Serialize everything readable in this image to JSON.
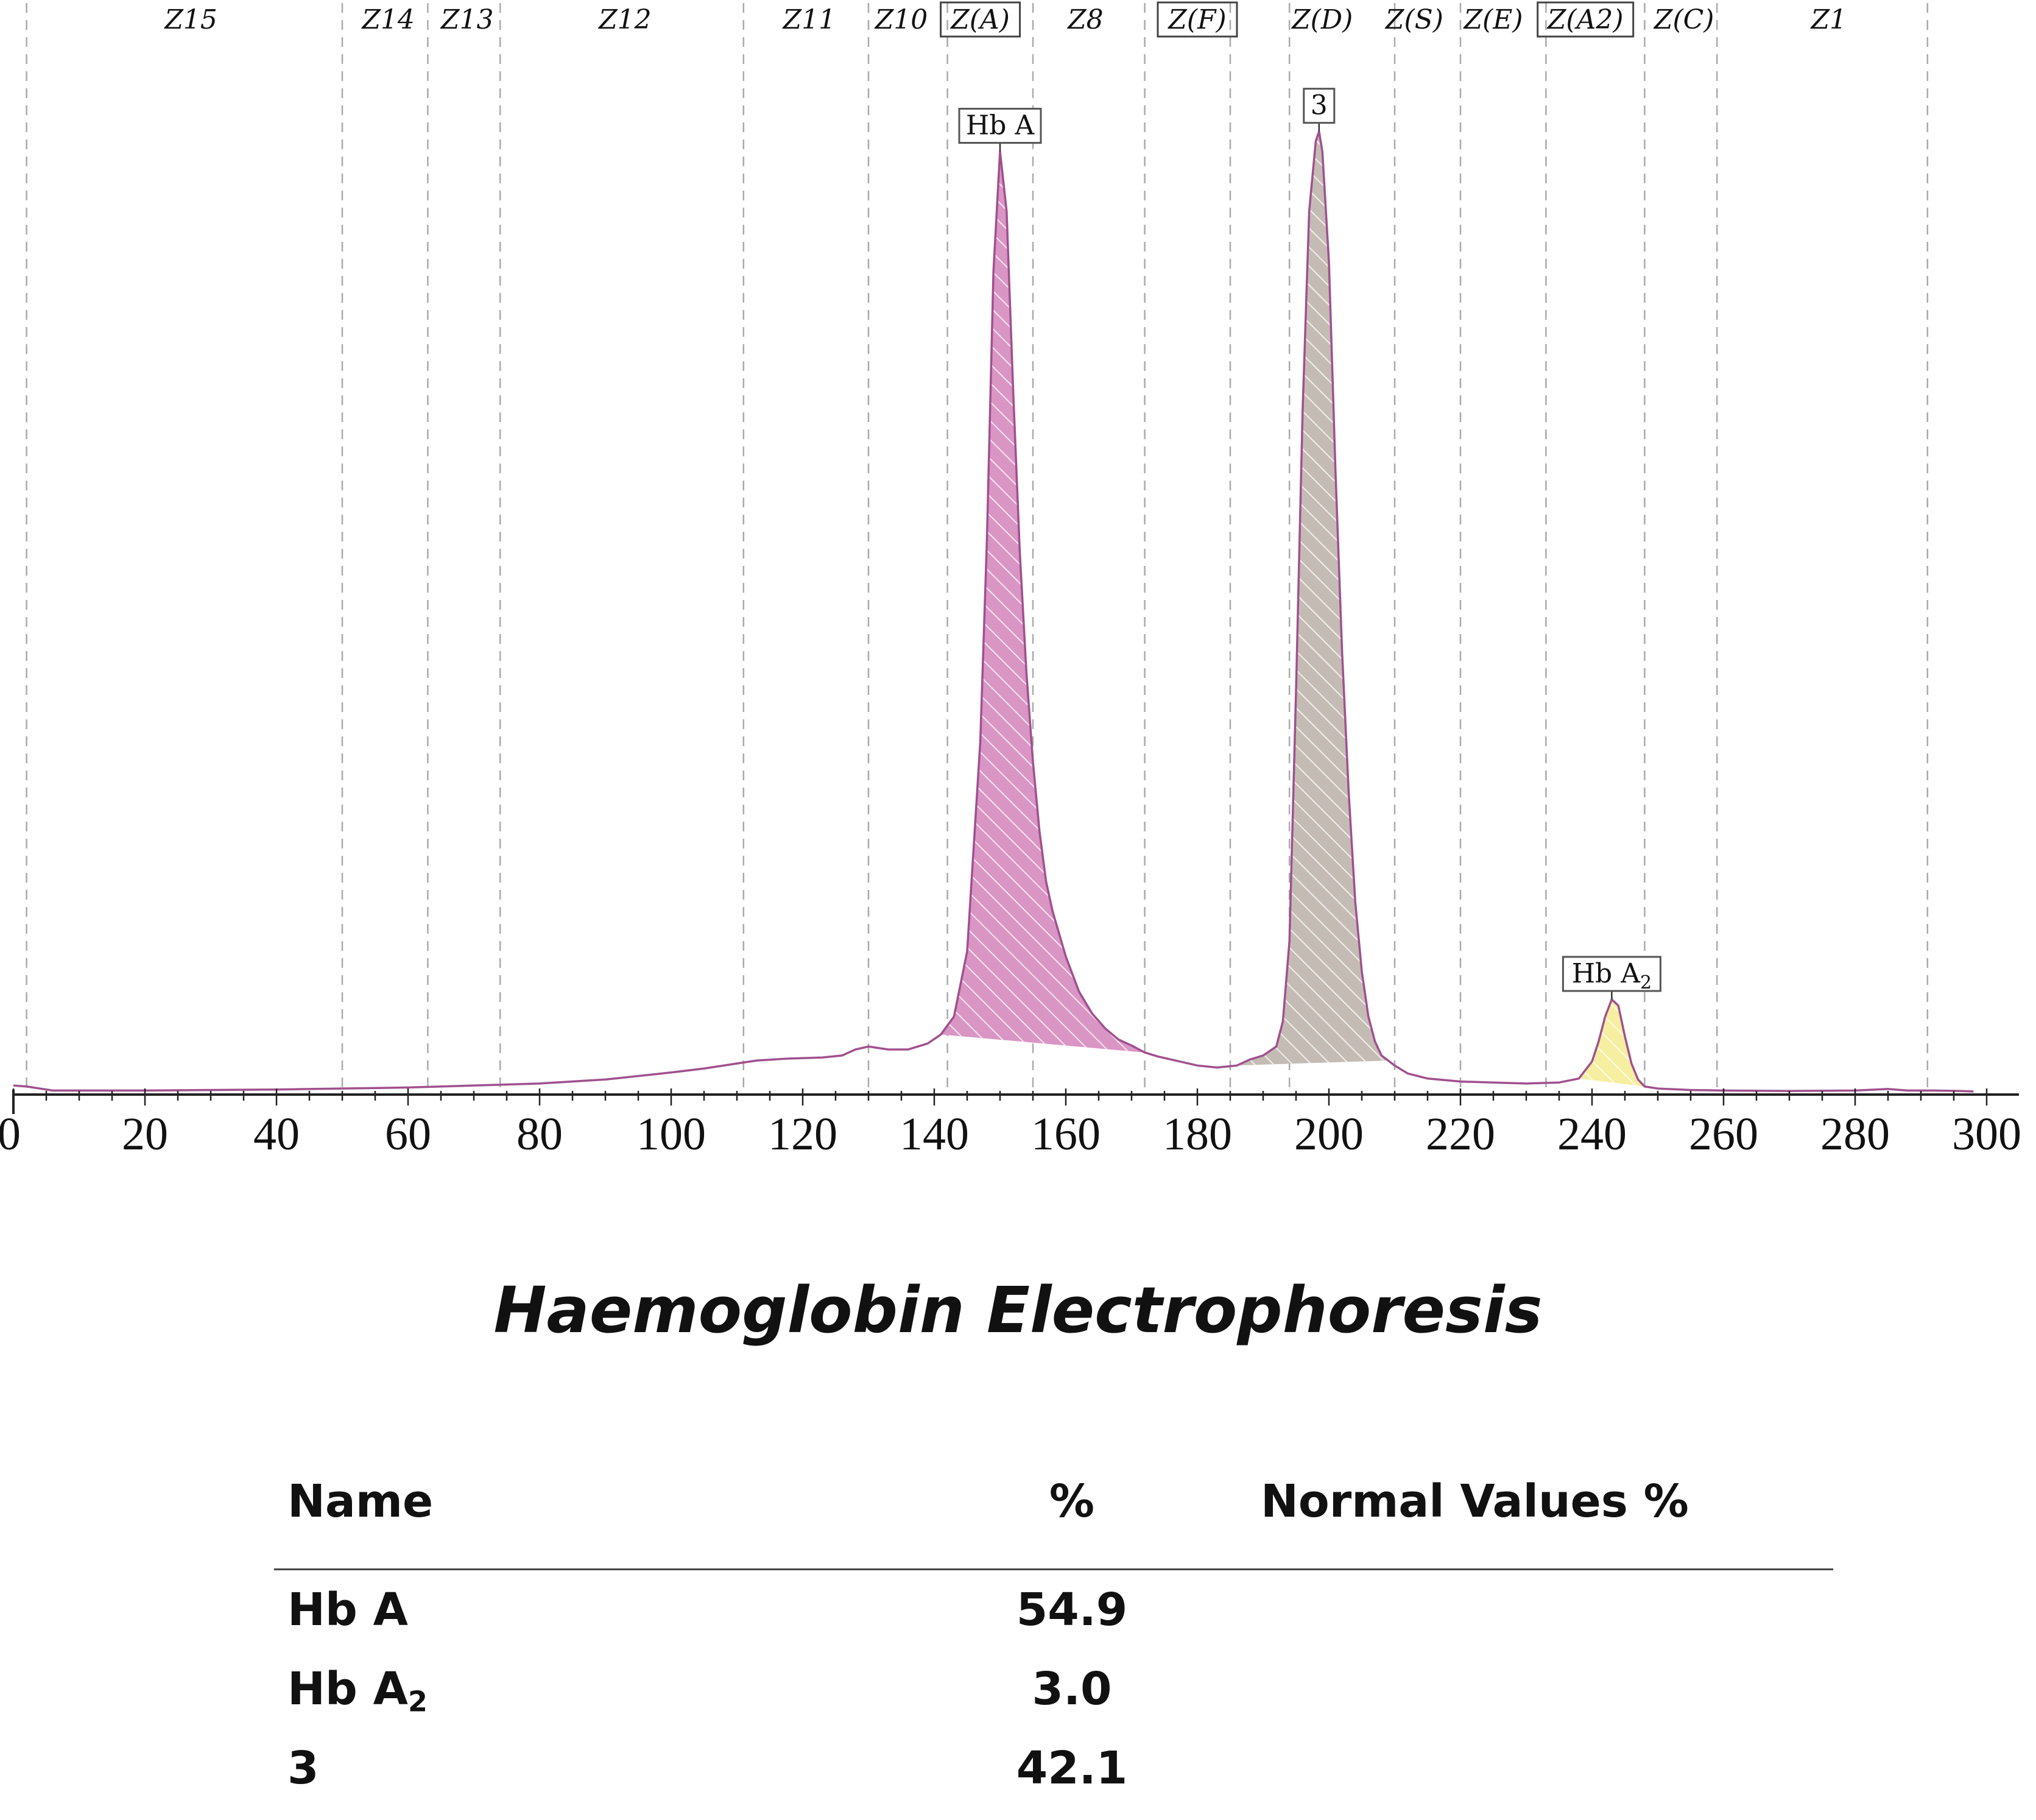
{
  "chart_data": {
    "type": "line",
    "title": "Haemoglobin Electrophoresis",
    "xlim": [
      0,
      300
    ],
    "ylim": [
      0,
      100
    ],
    "x_ticks": [
      0,
      20,
      40,
      60,
      80,
      100,
      120,
      140,
      160,
      180,
      200,
      220,
      240,
      260,
      280,
      300
    ],
    "zones": [
      {
        "label": "Z15",
        "boxed": false,
        "center": 27
      },
      {
        "label": "Z14",
        "boxed": false,
        "center": 57
      },
      {
        "label": "Z13",
        "boxed": false,
        "center": 69
      },
      {
        "label": "Z12",
        "boxed": false,
        "center": 93
      },
      {
        "label": "Z11",
        "boxed": false,
        "center": 121
      },
      {
        "label": "Z10",
        "boxed": false,
        "center": 135
      },
      {
        "label": "Z(A)",
        "boxed": true,
        "center": 147
      },
      {
        "label": "Z8",
        "boxed": false,
        "center": 163
      },
      {
        "label": "Z(F)",
        "boxed": true,
        "center": 180
      },
      {
        "label": "Z(D)",
        "boxed": false,
        "center": 199
      },
      {
        "label": "Z(S)",
        "boxed": false,
        "center": 213
      },
      {
        "label": "Z(E)",
        "boxed": false,
        "center": 225
      },
      {
        "label": "Z(A2)",
        "boxed": true,
        "center": 239
      },
      {
        "label": "Z(C)",
        "boxed": false,
        "center": 254
      },
      {
        "label": "Z1",
        "boxed": false,
        "center": 276
      }
    ],
    "zone_boundaries": [
      2,
      50,
      63,
      74,
      111,
      130,
      142,
      155,
      172,
      185,
      194,
      210,
      220,
      233,
      248,
      259,
      291
    ],
    "peaks": [
      {
        "name": "Hb A",
        "main": "Hb A",
        "sub": "",
        "center": 150,
        "height": 94,
        "color": "#d995c4"
      },
      {
        "name": "3",
        "main": "3",
        "sub": "",
        "center": 198.5,
        "height": 96,
        "color": "#c4bcb4"
      },
      {
        "name": "Hb A2",
        "main": "Hb A",
        "sub": "2",
        "center": 243,
        "height": 9.2,
        "color": "#f6eea0"
      }
    ],
    "series": [
      {
        "x": [
          0,
          2,
          4,
          6,
          20,
          40,
          60,
          80,
          90,
          100,
          105,
          110,
          113,
          118,
          123,
          126,
          128,
          130,
          133,
          136,
          139,
          141,
          143,
          145,
          147,
          148,
          149,
          150,
          151,
          152,
          153,
          154,
          155,
          156,
          157,
          158,
          160,
          162,
          164,
          166,
          168,
          170,
          172,
          174,
          176,
          180,
          183,
          186,
          188,
          190,
          192,
          193,
          194,
          195,
          196,
          197,
          198,
          198.5,
          199,
          200,
          201,
          202,
          203,
          204,
          205,
          206,
          207,
          208,
          210,
          212,
          215,
          220,
          225,
          230,
          235,
          238,
          240,
          241,
          242,
          243,
          244,
          245,
          246,
          247,
          248,
          250,
          255,
          260,
          270,
          280,
          285,
          288,
          292,
          296,
          298
        ],
        "y": [
          0.6,
          0.5,
          0.3,
          0.1,
          0.1,
          0.2,
          0.4,
          0.8,
          1.2,
          1.9,
          2.3,
          2.8,
          3.1,
          3.3,
          3.4,
          3.6,
          4.2,
          4.5,
          4.2,
          4.2,
          4.8,
          5.7,
          7.5,
          14,
          35,
          55,
          82,
          94,
          88,
          70,
          54,
          42,
          33,
          26,
          21,
          18,
          13.5,
          10,
          7.8,
          6.3,
          5.2,
          4.6,
          3.9,
          3.5,
          3.2,
          2.6,
          2.4,
          2.6,
          3.2,
          3.6,
          4.5,
          7,
          15,
          40,
          68,
          88,
          95,
          96,
          94,
          83,
          62,
          44,
          30,
          19,
          12,
          7.5,
          5,
          3.6,
          2.6,
          1.8,
          1.3,
          1.0,
          0.9,
          0.8,
          0.9,
          1.3,
          3,
          5,
          7.5,
          9.2,
          8.6,
          5.5,
          2.8,
          1.2,
          0.5,
          0.3,
          0.15,
          0.1,
          0.05,
          0.1,
          0.25,
          0.1,
          0.1,
          0.05,
          0
        ]
      }
    ],
    "fills": [
      {
        "peak": "Hb A",
        "x_start": 141,
        "x_end": 172
      },
      {
        "peak": "3",
        "x_start": 186,
        "x_end": 209
      },
      {
        "peak": "Hb A2",
        "x_start": 238,
        "x_end": 248
      }
    ],
    "colors": {
      "curve": "#a0508e",
      "axis": "#222222",
      "grid": "#aaaaaa"
    }
  },
  "results": {
    "title": "Haemoglobin Electrophoresis",
    "headers": {
      "name": "Name",
      "percent": "%",
      "normal": "Normal Values %"
    },
    "rows": [
      {
        "name": "Hb A",
        "sub": "",
        "percent": "54.9",
        "normal": ""
      },
      {
        "name": "Hb A",
        "sub": "2",
        "percent": "3.0",
        "normal": ""
      },
      {
        "name": "3",
        "sub": "",
        "percent": "42.1",
        "normal": ""
      }
    ]
  }
}
